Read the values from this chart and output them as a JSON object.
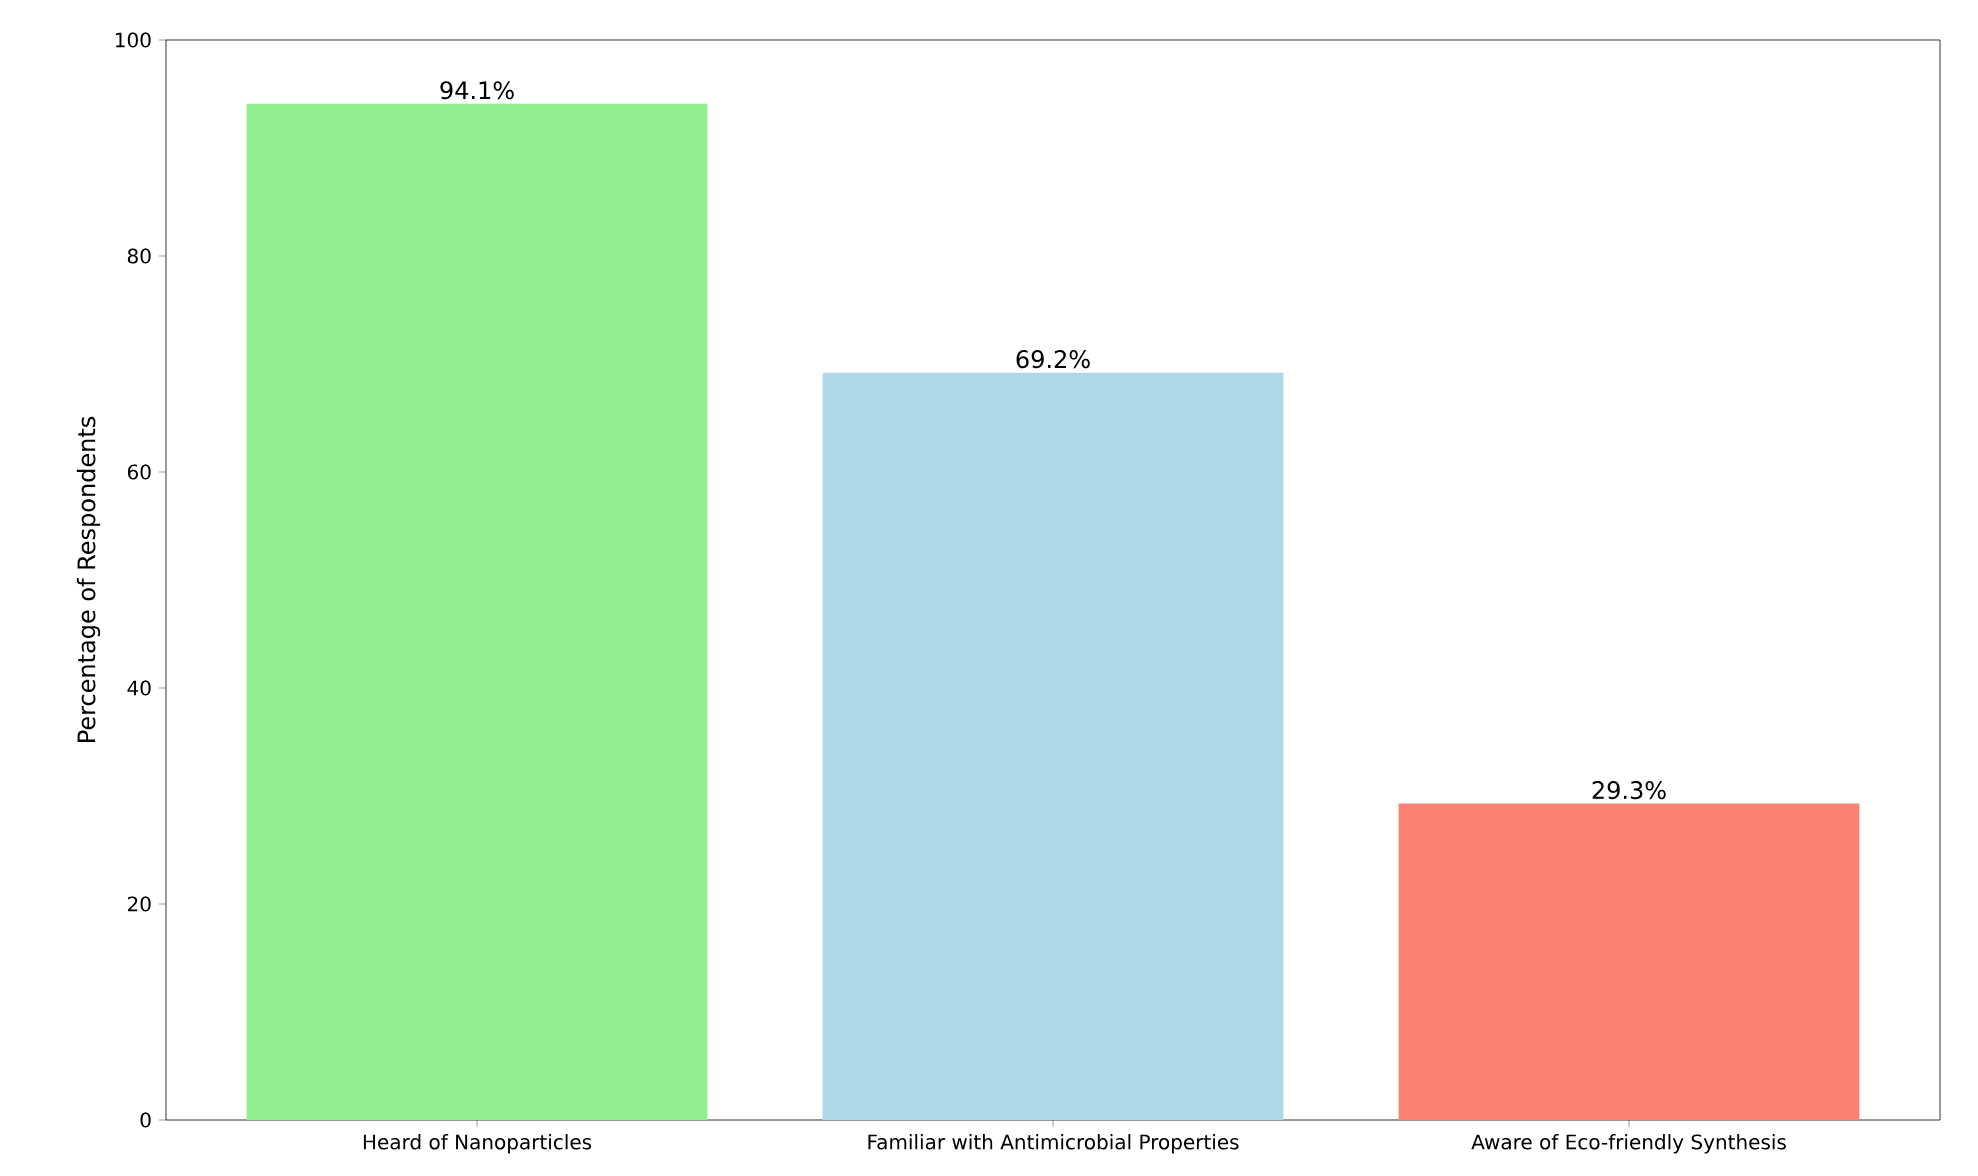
{
  "chart_data": {
    "type": "bar",
    "categories": [
      "Heard of Nanoparticles",
      "Familiar with Antimicrobial Properties",
      "Aware of Eco-friendly Synthesis"
    ],
    "values": [
      94.1,
      69.2,
      29.3
    ],
    "colors": [
      "#90ee90",
      "#add8e6",
      "#fa8072"
    ],
    "value_labels": [
      "94.1%",
      "69.2%",
      "29.3%"
    ],
    "ylabel": "Percentage of Respondents",
    "ylim": [
      0,
      100
    ],
    "yticks": [
      0,
      20,
      40,
      60,
      80,
      100
    ],
    "grid": false
  }
}
